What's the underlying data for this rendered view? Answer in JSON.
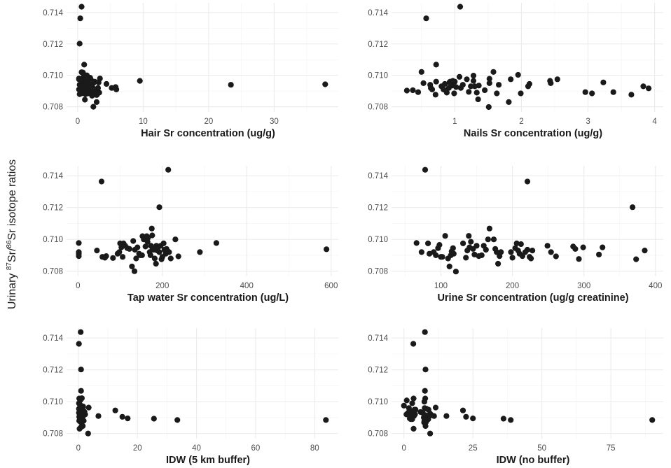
{
  "colors": {
    "point": "#1a1a1a",
    "grid_major": "#ebebeb",
    "grid_minor": "#f3f3f3",
    "tick_text": "#4d4d4d",
    "title_text": "#1a1a1a"
  },
  "y_title": {
    "prefix": "Urinary ",
    "sup1": "87",
    "mid": "Sr/",
    "sup2": "86",
    "suffix": "Sr isotope ratios"
  },
  "chart_data": [
    {
      "type": "scatter",
      "xlabel": "Hair Sr concentration (ug/g)",
      "ylabel": "Urinary 87Sr/86Sr isotope ratios",
      "xlim": [
        -1.7,
        39.8
      ],
      "ylim": [
        0.70767,
        0.71462
      ],
      "xticks": [
        0,
        10,
        20,
        30
      ],
      "xtick_labels": [
        "0",
        "10",
        "20",
        "30"
      ],
      "yticks": [
        0.708,
        0.71,
        0.712,
        0.714
      ],
      "ytick_labels": [
        "0.708",
        "0.710",
        "0.712",
        "0.714"
      ],
      "grid": true,
      "x": [
        0.6,
        0.4,
        0.3,
        1.0,
        0.6,
        0.8,
        1.4,
        0.2,
        0.4,
        0.6,
        0.8,
        1.0,
        1.2,
        1.4,
        1.6,
        1.8,
        2.0,
        2.2,
        2.4,
        2.6,
        0.3,
        0.5,
        0.7,
        0.9,
        1.1,
        1.3,
        1.5,
        1.7,
        1.9,
        2.1,
        2.3,
        0.2,
        0.5,
        0.8,
        1.1,
        1.4,
        1.7,
        2.0,
        2.3,
        2.6,
        2.9,
        3.1,
        3.4,
        3.0,
        2.8,
        0.3,
        0.7,
        1.2,
        1.6,
        2.1,
        2.5,
        2.9,
        3.3,
        1.1,
        2.9,
        2.4,
        4.4,
        5.2,
        5.8,
        5.9,
        9.5,
        23.4,
        37.8,
        0.2,
        0.6,
        1.5,
        2.2,
        3.2,
        1.9,
        0.9
      ],
      "y": [
        0.71437,
        0.71363,
        0.71202,
        0.71068,
        0.7102,
        0.71018,
        0.71,
        0.7098,
        0.70975,
        0.7097,
        0.7096,
        0.70955,
        0.7095,
        0.70965,
        0.7096,
        0.7095,
        0.70975,
        0.7096,
        0.7095,
        0.7096,
        0.7094,
        0.70935,
        0.7093,
        0.70925,
        0.7093,
        0.7092,
        0.70935,
        0.70925,
        0.7092,
        0.7093,
        0.7092,
        0.7091,
        0.70905,
        0.709,
        0.7091,
        0.709,
        0.70905,
        0.709,
        0.70895,
        0.709,
        0.7091,
        0.7092,
        0.7098,
        0.7088,
        0.7089,
        0.7088,
        0.7089,
        0.7088,
        0.70885,
        0.7088,
        0.7089,
        0.70875,
        0.7089,
        0.70845,
        0.7083,
        0.708,
        0.70945,
        0.7092,
        0.70925,
        0.7091,
        0.70965,
        0.7094,
        0.70943,
        0.70975,
        0.70885,
        0.70945,
        0.7087,
        0.70955,
        0.70985,
        0.7099
      ]
    },
    {
      "type": "scatter",
      "xlabel": "Nails Sr concentration (ug/g)",
      "ylabel": "Urinary 87Sr/86Sr isotope ratios",
      "xlim": [
        0.05,
        4.13
      ],
      "ylim": [
        0.70767,
        0.71462
      ],
      "xticks": [
        1,
        2,
        3,
        4
      ],
      "xtick_labels": [
        "1",
        "2",
        "3",
        "4"
      ],
      "yticks": [
        0.708,
        0.71,
        0.712,
        0.714
      ],
      "ytick_labels": [
        "0.708",
        "0.710",
        "0.712",
        "0.714"
      ],
      "grid": true,
      "x": [
        1.08,
        0.57,
        0.72,
        0.5,
        0.28,
        0.37,
        0.45,
        0.53,
        0.63,
        0.66,
        0.64,
        0.72,
        0.71,
        0.8,
        0.83,
        0.86,
        0.88,
        0.91,
        0.93,
        0.96,
        0.97,
        0.99,
        1.02,
        1.07,
        1.09,
        1.12,
        1.18,
        1.21,
        1.24,
        1.28,
        1.28,
        1.3,
        1.33,
        1.35,
        1.36,
        1.45,
        1.51,
        1.52,
        1.52,
        1.58,
        1.63,
        1.66,
        1.81,
        1.84,
        1.95,
        1.99,
        2.1,
        2.12,
        2.43,
        2.44,
        2.54,
        2.96,
        3.06,
        3.23,
        3.38,
        3.65,
        3.83,
        3.91,
        0.85,
        0.92,
        1.0
      ],
      "y": [
        0.71437,
        0.71363,
        0.71068,
        0.71022,
        0.70903,
        0.70905,
        0.70893,
        0.7095,
        0.7094,
        0.7091,
        0.7092,
        0.7096,
        0.70877,
        0.7093,
        0.7091,
        0.70905,
        0.7089,
        0.7092,
        0.7096,
        0.70935,
        0.70965,
        0.70885,
        0.70925,
        0.7099,
        0.7092,
        0.7094,
        0.70975,
        0.70895,
        0.7093,
        0.70998,
        0.70965,
        0.7093,
        0.7089,
        0.70847,
        0.70935,
        0.70905,
        0.70798,
        0.70978,
        0.7095,
        0.71022,
        0.70885,
        0.7094,
        0.7083,
        0.70975,
        0.71003,
        0.70885,
        0.7093,
        0.70945,
        0.70965,
        0.7095,
        0.70975,
        0.70893,
        0.70885,
        0.70955,
        0.70893,
        0.70877,
        0.7093,
        0.70917,
        0.70945,
        0.70955,
        0.7096
      ]
    },
    {
      "type": "scatter",
      "xlabel": "Tap water Sr concentration (ug/L)",
      "ylabel": "Urinary 87Sr/86Sr isotope ratios",
      "xlim": [
        -27,
        617
      ],
      "ylim": [
        0.70768,
        0.71462
      ],
      "xticks": [
        0,
        200,
        400,
        600
      ],
      "xtick_labels": [
        "0",
        "200",
        "400",
        "600"
      ],
      "yticks": [
        0.708,
        0.71,
        0.712,
        0.714
      ],
      "ytick_labels": [
        "0.708",
        "0.710",
        "0.712",
        "0.714"
      ],
      "grid": true,
      "x": [
        214,
        56,
        193,
        2,
        2,
        2,
        2,
        45,
        58,
        64,
        67,
        83,
        94,
        98,
        100,
        103,
        106,
        108,
        112,
        117,
        122,
        128,
        131,
        134,
        135,
        138,
        141,
        145,
        148,
        152,
        153,
        156,
        160,
        163,
        166,
        170,
        172,
        173,
        175,
        177,
        180,
        182,
        185,
        186,
        188,
        190,
        193,
        196,
        198,
        200,
        203,
        205,
        208,
        210,
        213,
        216,
        220,
        231,
        238,
        289,
        328,
        589,
        176,
        165
      ],
      "y": [
        0.71437,
        0.71363,
        0.71202,
        0.70977,
        0.7092,
        0.7091,
        0.70895,
        0.7093,
        0.7089,
        0.70885,
        0.70895,
        0.70883,
        0.7091,
        0.7092,
        0.70975,
        0.7095,
        0.7089,
        0.70975,
        0.7096,
        0.70945,
        0.7094,
        0.7083,
        0.7099,
        0.708,
        0.70935,
        0.7088,
        0.7095,
        0.7091,
        0.709,
        0.709,
        0.7102,
        0.71,
        0.70955,
        0.7102,
        0.7101,
        0.7092,
        0.709,
        0.7096,
        0.71068,
        0.7094,
        0.70935,
        0.7088,
        0.70847,
        0.7096,
        0.7093,
        0.7095,
        0.7092,
        0.7096,
        0.70875,
        0.7089,
        0.70975,
        0.70935,
        0.7091,
        0.7094,
        0.70925,
        0.7092,
        0.7088,
        0.71,
        0.70893,
        0.7092,
        0.70977,
        0.70938,
        0.71025,
        0.70985
      ]
    },
    {
      "type": "scatter",
      "xlabel": "Urine Sr concentration (ug/g creatinine)",
      "ylabel": "Urinary 87Sr/86Sr isotope ratios",
      "xlim": [
        31,
        411
      ],
      "ylim": [
        0.70768,
        0.71462
      ],
      "xticks": [
        100,
        200,
        300,
        400
      ],
      "xtick_labels": [
        "100",
        "200",
        "300",
        "400"
      ],
      "yticks": [
        0.708,
        0.71,
        0.712,
        0.714
      ],
      "ytick_labels": [
        "0.708",
        "0.710",
        "0.712",
        "0.714"
      ],
      "grid": true,
      "x": [
        78,
        221,
        368,
        66,
        73,
        82,
        84,
        90,
        93,
        96,
        98,
        100,
        102,
        106,
        110,
        112,
        114,
        115,
        117,
        118,
        121,
        131,
        135,
        137,
        139,
        140,
        142,
        145,
        147,
        150,
        153,
        157,
        160,
        163,
        166,
        168,
        174,
        176,
        178,
        180,
        182,
        184,
        198,
        200,
        204,
        206,
        208,
        210,
        212,
        214,
        218,
        221,
        224,
        226,
        228,
        249,
        254,
        261,
        285,
        288,
        293,
        299,
        321,
        326,
        373,
        385
      ],
      "y": [
        0.71437,
        0.71363,
        0.71202,
        0.70977,
        0.7092,
        0.70975,
        0.7091,
        0.7092,
        0.709,
        0.70945,
        0.70965,
        0.7089,
        0.7089,
        0.71022,
        0.7088,
        0.7083,
        0.709,
        0.70925,
        0.70945,
        0.7091,
        0.70798,
        0.70975,
        0.70885,
        0.7093,
        0.71022,
        0.7095,
        0.70985,
        0.7094,
        0.70905,
        0.7096,
        0.70895,
        0.709,
        0.7096,
        0.70935,
        0.71,
        0.71068,
        0.71,
        0.7094,
        0.7092,
        0.70847,
        0.70895,
        0.7092,
        0.7092,
        0.70885,
        0.70945,
        0.70975,
        0.7093,
        0.7091,
        0.7097,
        0.70895,
        0.7092,
        0.70935,
        0.7089,
        0.7088,
        0.7093,
        0.7096,
        0.7092,
        0.70893,
        0.70955,
        0.7094,
        0.70877,
        0.7095,
        0.70905,
        0.7095,
        0.70875,
        0.7093
      ]
    },
    {
      "type": "scatter",
      "xlabel": "IDW (5 km buffer)",
      "ylabel": "Urinary 87Sr/86Sr isotope ratios",
      "xlim": [
        -4.0,
        88.0
      ],
      "ylim": [
        0.70768,
        0.71462
      ],
      "xticks": [
        0,
        20,
        40,
        60,
        80
      ],
      "xtick_labels": [
        "0",
        "20",
        "40",
        "60",
        "80"
      ],
      "yticks": [
        0.708,
        0.71,
        0.712,
        0.714
      ],
      "ytick_labels": [
        "0.708",
        "0.710",
        "0.712",
        "0.714"
      ],
      "grid": true,
      "x": [
        0.8,
        0.2,
        0.9,
        0.9,
        0.3,
        0.5,
        0.7,
        1.2,
        0.2,
        0.4,
        0.6,
        0.8,
        1.0,
        1.3,
        1.6,
        0.2,
        0.4,
        0.6,
        0.8,
        1.0,
        1.3,
        1.7,
        2.1,
        0.2,
        0.4,
        0.7,
        1.0,
        1.4,
        1.9,
        2.3,
        0.3,
        0.6,
        0.9,
        1.3,
        1.8,
        0.3,
        0.6,
        1.0,
        1.5,
        0.4,
        0.9,
        1.5,
        3.3,
        3.5,
        6.8,
        12.5,
        14.9,
        16.7,
        25.6,
        33.5,
        83.8
      ],
      "y": [
        0.71437,
        0.71363,
        0.71202,
        0.71068,
        0.7102,
        0.71015,
        0.7101,
        0.71022,
        0.7099,
        0.70985,
        0.7098,
        0.70975,
        0.7097,
        0.70965,
        0.7097,
        0.70955,
        0.7095,
        0.70945,
        0.7095,
        0.7094,
        0.7095,
        0.70945,
        0.70935,
        0.7093,
        0.70925,
        0.7092,
        0.7093,
        0.7092,
        0.70915,
        0.7092,
        0.70905,
        0.709,
        0.70905,
        0.7089,
        0.7088,
        0.7088,
        0.70875,
        0.7087,
        0.7088,
        0.7083,
        0.7084,
        0.70847,
        0.708,
        0.70963,
        0.7091,
        0.70945,
        0.70905,
        0.70895,
        0.70893,
        0.70885,
        0.70885
      ]
    },
    {
      "type": "scatter",
      "xlabel": "IDW (no buffer)",
      "ylabel": "Urinary 87Sr/86Sr isotope ratios",
      "xlim": [
        -4.5,
        94.0
      ],
      "ylim": [
        0.70768,
        0.71462
      ],
      "xticks": [
        0,
        25,
        50,
        75
      ],
      "xtick_labels": [
        "0",
        "25",
        "50",
        "75"
      ],
      "yticks": [
        0.708,
        0.71,
        0.712,
        0.714
      ],
      "ytick_labels": [
        "0.708",
        "0.710",
        "0.712",
        "0.714"
      ],
      "grid": true,
      "x": [
        7.6,
        3.4,
        7.8,
        7.6,
        3.5,
        7.7,
        7.4,
        0.0,
        1.0,
        1.8,
        2.4,
        3.0,
        3.8,
        4.2,
        0.9,
        1.5,
        2.6,
        3.3,
        4.0,
        6.0,
        6.8,
        7.5,
        8.2,
        8.9,
        9.5,
        10.0,
        7.2,
        7.8,
        8.4,
        9.1,
        2.1,
        3.0,
        3.6,
        2.5,
        7.4,
        8.1,
        8.8,
        7.3,
        7.9,
        3.5,
        7.8,
        9.5,
        11.5,
        10.9,
        15.4,
        21.4,
        22.5,
        25.0,
        36.1,
        38.7,
        90.0
      ],
      "y": [
        0.71437,
        0.71363,
        0.71202,
        0.71068,
        0.7102,
        0.7102,
        0.71,
        0.70975,
        0.71008,
        0.7096,
        0.7094,
        0.7099,
        0.7095,
        0.7095,
        0.7092,
        0.7093,
        0.70925,
        0.70935,
        0.7092,
        0.70935,
        0.7093,
        0.7096,
        0.70955,
        0.7095,
        0.70925,
        0.70915,
        0.709,
        0.70915,
        0.70905,
        0.7091,
        0.70895,
        0.7089,
        0.7091,
        0.7089,
        0.7088,
        0.70875,
        0.7089,
        0.7087,
        0.7087,
        0.7083,
        0.70847,
        0.708,
        0.70963,
        0.7091,
        0.7091,
        0.70945,
        0.70905,
        0.70895,
        0.70893,
        0.70885,
        0.70885
      ]
    }
  ]
}
